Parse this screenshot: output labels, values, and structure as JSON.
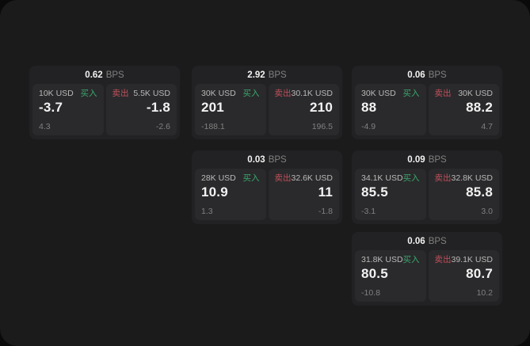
{
  "labels": {
    "bps": "BPS",
    "buy": "买入",
    "sell": "卖出"
  },
  "colors": {
    "buy_green": "#3aa76d",
    "sell_red": "#c14f5a",
    "panel_bg": "#1b1b1c",
    "card_bg": "#222224",
    "tile_bg": "#2a2a2c"
  },
  "cards": [
    {
      "bps": "0.62",
      "buy": {
        "amount": "10K USD",
        "value": "-3.7",
        "delta": "4.3"
      },
      "sell": {
        "amount": "5.5K USD",
        "value": "-1.8",
        "delta": "-2.6"
      }
    },
    {
      "bps": "2.92",
      "buy": {
        "amount": "30K USD",
        "value": "201",
        "delta": "-188.1"
      },
      "sell": {
        "amount": "30.1K USD",
        "value": "210",
        "delta": "196.5"
      }
    },
    {
      "bps": "0.06",
      "buy": {
        "amount": "30K USD",
        "value": "88",
        "delta": "-4.9"
      },
      "sell": {
        "amount": "30K USD",
        "value": "88.2",
        "delta": "4.7"
      }
    },
    {
      "bps": "0.03",
      "buy": {
        "amount": "28K USD",
        "value": "10.9",
        "delta": "1.3"
      },
      "sell": {
        "amount": "32.6K USD",
        "value": "11",
        "delta": "-1.8"
      }
    },
    {
      "bps": "0.09",
      "buy": {
        "amount": "34.1K USD",
        "value": "85.5",
        "delta": "-3.1"
      },
      "sell": {
        "amount": "32.8K USD",
        "value": "85.8",
        "delta": "3.0"
      }
    },
    {
      "bps": "0.06",
      "buy": {
        "amount": "31.8K USD",
        "value": "80.5",
        "delta": "-10.8"
      },
      "sell": {
        "amount": "39.1K USD",
        "value": "80.7",
        "delta": "10.2"
      }
    }
  ]
}
